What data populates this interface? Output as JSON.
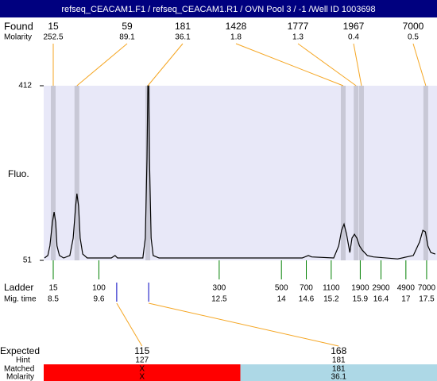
{
  "title": "refseq_CEACAM1.F1 / refseq_CEACAM1.R1 / OVN Pool 3 / -1 /Well ID 1003698",
  "chart_data": {
    "type": "line",
    "ylabel": "Fluo.",
    "color": "#000000",
    "xlim": [
      8.27,
      17.75
    ],
    "ylim": [
      51,
      412
    ],
    "yticks": [
      51,
      412
    ],
    "x": [
      8.29,
      8.37,
      8.42,
      8.48,
      8.52,
      8.56,
      8.59,
      8.65,
      8.75,
      8.9,
      8.98,
      9.04,
      9.07,
      9.11,
      9.15,
      9.21,
      9.32,
      9.9,
      9.99,
      10.05,
      10.66,
      10.72,
      10.76,
      10.78,
      10.8,
      10.82,
      10.86,
      10.91,
      11.05,
      14.5,
      14.65,
      14.73,
      15.26,
      15.38,
      15.45,
      15.51,
      15.57,
      15.65,
      15.7,
      15.76,
      15.82,
      15.88,
      15.95,
      16.07,
      16.22,
      16.8,
      17.18,
      17.33,
      17.41,
      17.47,
      17.53,
      17.6,
      17.71
    ],
    "values": [
      56,
      61,
      81,
      130,
      151,
      130,
      81,
      61,
      56,
      61,
      97,
      163,
      189,
      163,
      97,
      64,
      56,
      56,
      61,
      56,
      56,
      97,
      261,
      412,
      412,
      261,
      97,
      61,
      56,
      56,
      61,
      58,
      56,
      81,
      113,
      126,
      105,
      67,
      97,
      105,
      97,
      81,
      72,
      61,
      58,
      54,
      61,
      89,
      113,
      110,
      81,
      67,
      64
    ]
  },
  "found": {
    "label": "Found",
    "molarity_label": "Molarity",
    "sizes": [
      15,
      59,
      181,
      1428,
      1777,
      1967,
      7000
    ],
    "molarity": [
      252.5,
      89.1,
      36.1,
      1.8,
      1.3,
      0.4,
      0.5
    ],
    "mig_times": [
      8.5,
      9.07,
      10.78,
      15.49,
      15.8,
      15.93,
      17.48
    ]
  },
  "ladder": {
    "label": "Ladder",
    "time_label": "Mig. time",
    "sizes": [
      15,
      100,
      300,
      500,
      700,
      1100,
      1900,
      2900,
      4900,
      7000
    ],
    "mig_times": [
      8.5,
      9.6,
      12.5,
      14,
      14.6,
      15.2,
      15.9,
      16.4,
      17,
      17.5
    ]
  },
  "expected": {
    "label": "Expected",
    "hint_label": "Hint",
    "matched_label": "Matched",
    "molarity_label": "Molarity",
    "sizes": [
      115,
      168
    ],
    "hints": [
      127,
      181
    ],
    "matched": [
      "X",
      181
    ],
    "molarity": [
      "X",
      36.1
    ],
    "mig_times": [
      10.03,
      10.8
    ],
    "colors": [
      "#ff0000",
      "#add8e6"
    ]
  }
}
